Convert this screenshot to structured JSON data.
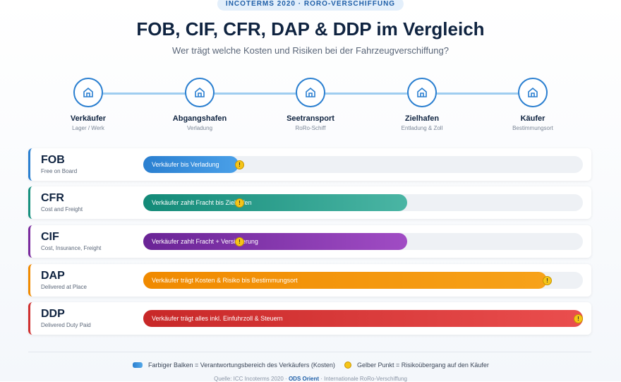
{
  "badge": "INCOTERMS 2020 · RORO-VERSCHIFFUNG",
  "title": "FOB, CIF, CFR, DAP & DDP im Vergleich",
  "subtitle": "Wer trägt welche Kosten und Risiken bei der Fahrzeugverschiffung?",
  "stages": [
    {
      "label": "Verkäufer",
      "sub": "Lager / Werk"
    },
    {
      "label": "Abgangshafen",
      "sub": "Verladung"
    },
    {
      "label": "Seetransport",
      "sub": "RoRo-Schiff"
    },
    {
      "label": "Zielhafen",
      "sub": "Entladung & Zoll"
    },
    {
      "label": "Käufer",
      "sub": "Bestimmungsort"
    }
  ],
  "terms": [
    {
      "code": "FOB",
      "name": "Free on Board",
      "bar": "Verkäufer bis Verladung"
    },
    {
      "code": "CFR",
      "name": "Cost and Freight",
      "bar": "Verkäufer zahlt Fracht bis Zielhafen"
    },
    {
      "code": "CIF",
      "name": "Cost, Insurance, Freight",
      "bar": "Verkäufer zahlt Fracht + Versicherung"
    },
    {
      "code": "DAP",
      "name": "Delivered at Place",
      "bar": "Verkäufer trägt Kosten & Risiko bis Bestimmungsort"
    },
    {
      "code": "DDP",
      "name": "Delivered Duty Paid",
      "bar": "Verkäufer trägt alles inkl. Einfuhrzoll & Steuern"
    }
  ],
  "legend": {
    "bar": "Farbiger Balken = Verantwortungsbereich des Verkäufers (Kosten)",
    "dot": "Gelber Punkt = Risikoübergang auf den Käufer"
  },
  "footer": {
    "source": "Quelle: ICC Incoterms 2020 ·",
    "brand": "ODS Orient",
    "rest": "· Internationale RoRo-Verschiffung"
  }
}
